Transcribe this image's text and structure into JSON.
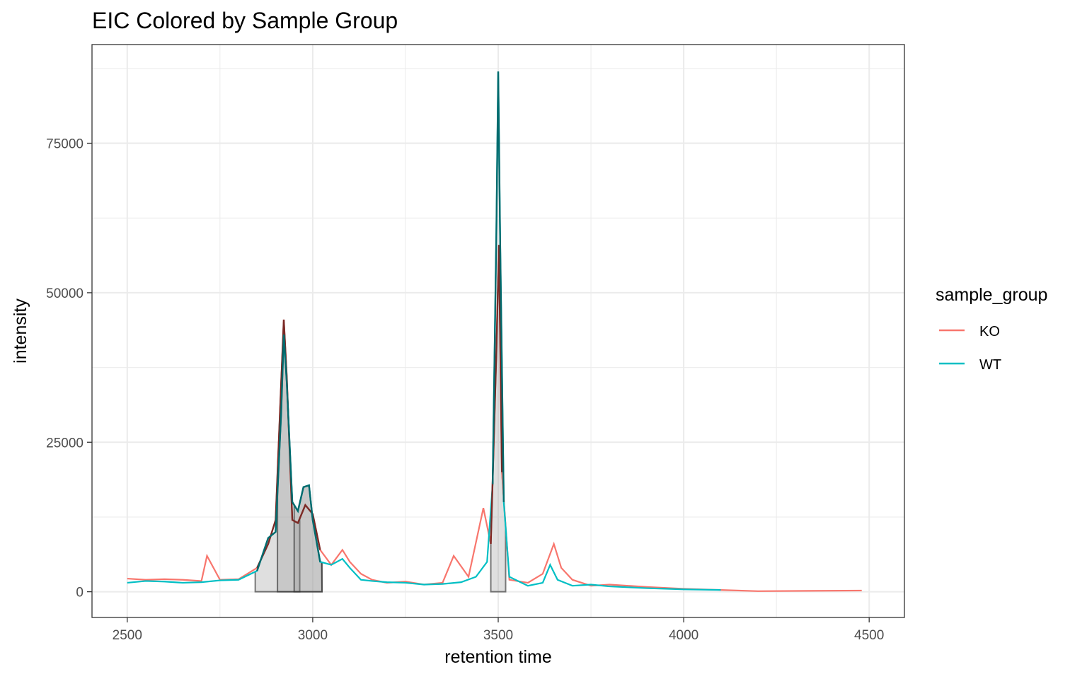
{
  "chart_data": {
    "type": "line",
    "title": "EIC Colored by Sample Group",
    "xlabel": "retention time",
    "ylabel": "intensity",
    "xlim": [
      2405,
      4595
    ],
    "ylim": [
      -4300,
      91500
    ],
    "x_ticks": [
      2500,
      3000,
      3500,
      4000,
      4500
    ],
    "x_tick_labels": [
      "2500",
      "3000",
      "3500",
      "4000",
      "4500"
    ],
    "y_ticks": [
      0,
      25000,
      50000,
      75000
    ],
    "y_tick_labels": [
      "0",
      "25000",
      "50000",
      "75000"
    ],
    "grid": true,
    "legend": {
      "title": "sample_group",
      "position": "right",
      "entries": [
        {
          "label": "KO",
          "color": "#F8766D"
        },
        {
          "label": "WT",
          "color": "#00BFC4"
        }
      ]
    },
    "series": [
      {
        "name": "KO",
        "color": "#F8766D",
        "x": [
          2500,
          2550,
          2600,
          2650,
          2700,
          2715,
          2750,
          2800,
          2850,
          2880,
          2900,
          2915,
          2922,
          2930,
          2945,
          2960,
          2980,
          3000,
          3020,
          3050,
          3080,
          3100,
          3130,
          3160,
          3200,
          3250,
          3300,
          3350,
          3380,
          3420,
          3460,
          3480,
          3495,
          3502,
          3510,
          3530,
          3580,
          3620,
          3650,
          3670,
          3700,
          3750,
          3800,
          3900,
          4000,
          4100,
          4200,
          4480
        ],
        "y": [
          2200,
          2000,
          2100,
          2000,
          1800,
          6000,
          2000,
          2100,
          4000,
          8000,
          12000,
          35000,
          45500,
          36000,
          12000,
          11500,
          14500,
          13000,
          7000,
          4500,
          7000,
          5000,
          3000,
          2000,
          1500,
          1700,
          1200,
          1500,
          6000,
          2500,
          14000,
          8000,
          40000,
          58000,
          20000,
          2000,
          1500,
          3000,
          8000,
          4000,
          2000,
          1000,
          1200,
          800,
          500,
          300,
          100,
          200
        ]
      },
      {
        "name": "WT",
        "color": "#00BFC4",
        "x": [
          2500,
          2550,
          2600,
          2650,
          2700,
          2750,
          2800,
          2850,
          2880,
          2900,
          2915,
          2922,
          2930,
          2945,
          2960,
          2975,
          2990,
          3000,
          3020,
          3050,
          3080,
          3100,
          3130,
          3160,
          3200,
          3250,
          3300,
          3350,
          3400,
          3440,
          3470,
          3485,
          3495,
          3500,
          3505,
          3515,
          3530,
          3580,
          3620,
          3640,
          3660,
          3700,
          3750,
          3800,
          3900,
          4000,
          4100
        ],
        "y": [
          1500,
          1800,
          1700,
          1500,
          1600,
          1900,
          2000,
          3500,
          9000,
          10000,
          30000,
          43000,
          35000,
          15000,
          13500,
          17500,
          17800,
          12000,
          5000,
          4500,
          5500,
          4000,
          2000,
          1800,
          1600,
          1500,
          1200,
          1300,
          1600,
          2500,
          5000,
          18000,
          60000,
          87000,
          60000,
          15000,
          2500,
          1000,
          1500,
          4500,
          2000,
          1000,
          1200,
          900,
          600,
          400,
          300
        ]
      }
    ],
    "peak_areas": [
      {
        "rt_min": 2845,
        "rt_max": 3025
      },
      {
        "rt_min": 2905,
        "rt_max": 2965
      },
      {
        "rt_min": 2950,
        "rt_max": 3025
      },
      {
        "rt_min": 3480,
        "rt_max": 3520
      }
    ]
  }
}
